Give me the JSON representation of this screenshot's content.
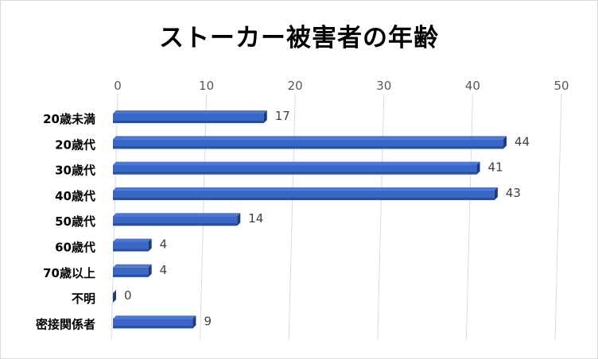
{
  "chart_data": {
    "type": "bar",
    "orientation": "horizontal",
    "title": "ストーカー被害者の年齢",
    "categories": [
      "20歳未満",
      "20歳代",
      "30歳代",
      "40歳代",
      "50歳代",
      "60歳代",
      "70歳以上",
      "不明",
      "密接関係者"
    ],
    "values": [
      17,
      44,
      41,
      43,
      14,
      4,
      4,
      0,
      9
    ],
    "xlim": [
      0,
      50
    ],
    "xticks": [
      0,
      10,
      20,
      30,
      40,
      50
    ],
    "xaxis_position": "top",
    "grid": true,
    "legend": "none",
    "colors": {
      "bar_top": "#4a78d8",
      "bar_front": "#3a66c8",
      "bar_side": "#1f3a78",
      "bar_under": "#2a4f9a",
      "grid": "#d9d9d9"
    }
  }
}
